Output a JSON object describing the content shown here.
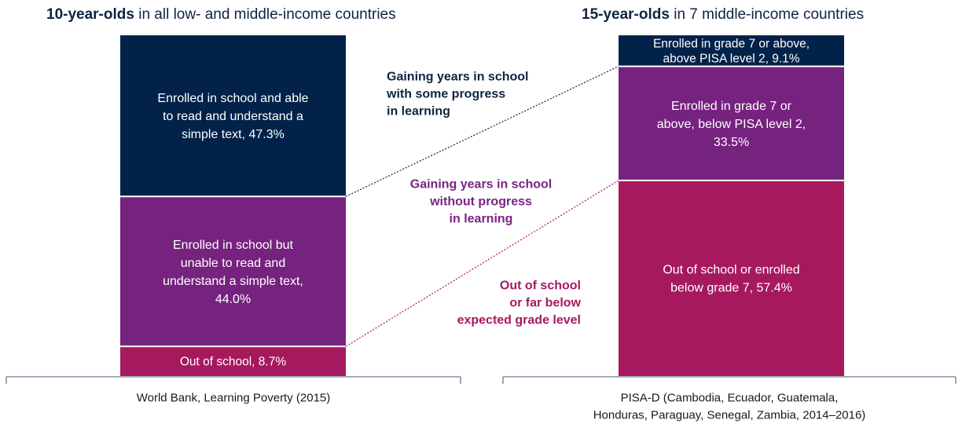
{
  "titles": {
    "left": {
      "bold": "10-year-olds",
      "rest": " in all low- and middle-income countries"
    },
    "right": {
      "bold": "15-year-olds",
      "rest": " in 7 middle-income countries"
    }
  },
  "colors": {
    "navy": "#022249",
    "purple": "#76227f",
    "magenta": "#a6195d",
    "navy_text": "#0e2442",
    "purple_text": "#7b2382",
    "magenta_text": "#a8195d"
  },
  "chart_data": {
    "type": "bar",
    "stacked": true,
    "categories": [
      "World Bank, Learning Poverty (2015)",
      "PISA-D (Cambodia, Ecuador, Guatemala, Honduras, Paraguay, Senegal, Zambia, 2014–2016)"
    ],
    "category_lines": [
      [
        "World Bank, Learning Poverty (2015)"
      ],
      [
        "PISA-D (Cambodia, Ecuador, Guatemala,",
        "Honduras, Paraguay, Senegal, Zambia, 2014–2016)"
      ]
    ],
    "ylim": [
      0,
      100
    ],
    "bars": [
      {
        "segments": [
          {
            "value": 8.7,
            "color": "#a6195d",
            "label_lines": [
              "Out of school, 8.7%"
            ]
          },
          {
            "value": 44.0,
            "color": "#76227f",
            "label_lines": [
              "Enrolled in school but",
              "unable to read and",
              "understand a simple text,",
              "44.0%"
            ]
          },
          {
            "value": 47.3,
            "color": "#022249",
            "label_lines": [
              "Enrolled in school and able",
              "to read and understand a",
              "simple text, 47.3%"
            ]
          }
        ]
      },
      {
        "segments": [
          {
            "value": 57.4,
            "color": "#a6195d",
            "label_lines": [
              "Out of school or enrolled",
              "below grade 7, 57.4%"
            ]
          },
          {
            "value": 33.5,
            "color": "#76227f",
            "label_lines": [
              "Enrolled in grade 7 or",
              "above, below PISA level 2,",
              "33.5%"
            ]
          },
          {
            "value": 9.1,
            "color": "#022249",
            "label_lines": [
              "Enrolled in grade 7 or above,",
              "above PISA level 2, 9.1%"
            ]
          }
        ]
      }
    ],
    "annotations": [
      {
        "lines": [
          "Gaining years in school",
          "with some progress",
          "in learning"
        ],
        "color": "#0e2442",
        "align": "start"
      },
      {
        "lines": [
          "Gaining years in school",
          "without progress",
          "in learning"
        ],
        "color": "#7b2382",
        "align": "middle"
      },
      {
        "lines": [
          "Out of school",
          "or far below",
          "expected grade level"
        ],
        "color": "#a8195d",
        "align": "end"
      }
    ]
  }
}
